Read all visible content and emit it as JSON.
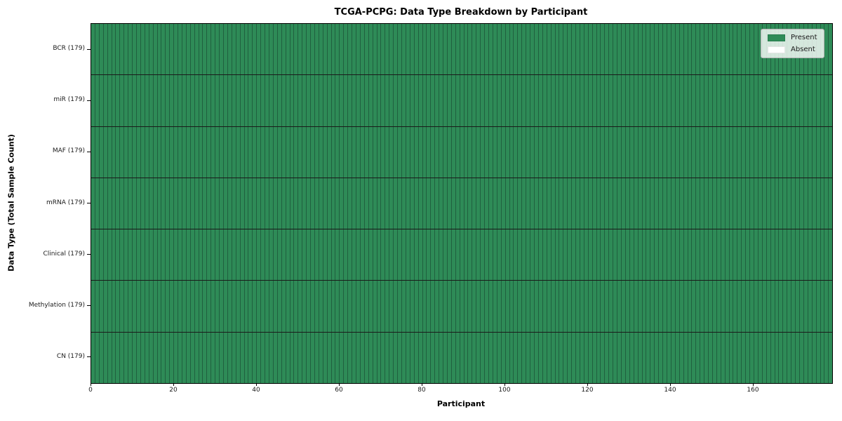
{
  "chart_data": {
    "type": "heatmap",
    "title": "TCGA-PCPG: Data Type Breakdown by Participant",
    "xlabel": "Participant",
    "ylabel": "Data Type (Total Sample Count)",
    "n_participants": 179,
    "xlim": [
      0,
      179
    ],
    "x_ticks": [
      0,
      20,
      40,
      60,
      80,
      100,
      120,
      140,
      160
    ],
    "rows": [
      {
        "label": "BCR (179)",
        "data_type": "BCR",
        "total_samples": 179,
        "present_count": 179,
        "absent_count": 0
      },
      {
        "label": "miR (179)",
        "data_type": "miR",
        "total_samples": 179,
        "present_count": 179,
        "absent_count": 0
      },
      {
        "label": "MAF (179)",
        "data_type": "MAF",
        "total_samples": 179,
        "present_count": 179,
        "absent_count": 0
      },
      {
        "label": "mRNA (179)",
        "data_type": "mRNA",
        "total_samples": 179,
        "present_count": 179,
        "absent_count": 0
      },
      {
        "label": "Clinical (179)",
        "data_type": "Clinical",
        "total_samples": 179,
        "present_count": 179,
        "absent_count": 0
      },
      {
        "label": "Methylation (179)",
        "data_type": "Methylation",
        "total_samples": 179,
        "present_count": 179,
        "absent_count": 0
      },
      {
        "label": "CN (179)",
        "data_type": "CN",
        "total_samples": 179,
        "present_count": 179,
        "absent_count": 0
      }
    ],
    "matrix_fill": "all cells present (value = 1) for every data type x participant",
    "legend": [
      {
        "label": "Present",
        "color": "#2e8b57"
      },
      {
        "label": "Absent",
        "color": "#ffffff"
      }
    ],
    "legend_position": "upper right",
    "grid": "per-participant vertical cell edges and per-row horizontal dividers",
    "colors": {
      "present": "#2e8b57",
      "absent": "#ffffff",
      "cell_edge": "#20603f",
      "row_divider": "#1a1a1a",
      "axis": "#000000"
    }
  }
}
